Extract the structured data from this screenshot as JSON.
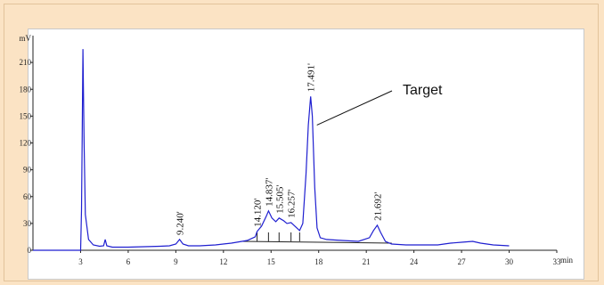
{
  "chart_data": {
    "type": "line",
    "ylabel": "mV",
    "xlabel": "min",
    "xlim": [
      0,
      33
    ],
    "ylim": [
      0,
      240
    ],
    "x_ticks": [
      3,
      6,
      9,
      12,
      15,
      18,
      21,
      24,
      27,
      30,
      33
    ],
    "y_ticks": [
      0,
      30,
      60,
      90,
      120,
      150,
      180,
      210
    ],
    "series": [
      {
        "color": "#1f1fd0",
        "points": [
          [
            0,
            0
          ],
          [
            3.0,
            0
          ],
          [
            3.06,
            45
          ],
          [
            3.1,
            120
          ],
          [
            3.15,
            225
          ],
          [
            3.22,
            120
          ],
          [
            3.3,
            40
          ],
          [
            3.5,
            12
          ],
          [
            3.8,
            6
          ],
          [
            4.2,
            4.5
          ],
          [
            4.45,
            5
          ],
          [
            4.55,
            12
          ],
          [
            4.65,
            5
          ],
          [
            5.0,
            3.5
          ],
          [
            6,
            3.5
          ],
          [
            7,
            4
          ],
          [
            8,
            4.5
          ],
          [
            8.6,
            5
          ],
          [
            9.0,
            7
          ],
          [
            9.24,
            12
          ],
          [
            9.45,
            7
          ],
          [
            9.8,
            5
          ],
          [
            10.5,
            5
          ],
          [
            11.5,
            6
          ],
          [
            12.5,
            8
          ],
          [
            13.5,
            11
          ],
          [
            14.0,
            15
          ],
          [
            14.12,
            21
          ],
          [
            14.4,
            27
          ],
          [
            14.7,
            38
          ],
          [
            14.84,
            44
          ],
          [
            15.05,
            36
          ],
          [
            15.3,
            32
          ],
          [
            15.505,
            36
          ],
          [
            15.8,
            33
          ],
          [
            16.0,
            30
          ],
          [
            16.257,
            31
          ],
          [
            16.5,
            27
          ],
          [
            16.8,
            22
          ],
          [
            17.0,
            30
          ],
          [
            17.2,
            85
          ],
          [
            17.35,
            140
          ],
          [
            17.491,
            172
          ],
          [
            17.6,
            150
          ],
          [
            17.75,
            70
          ],
          [
            17.9,
            25
          ],
          [
            18.1,
            14
          ],
          [
            18.5,
            12
          ],
          [
            19.5,
            11
          ],
          [
            20.5,
            10
          ],
          [
            21.2,
            14
          ],
          [
            21.45,
            22
          ],
          [
            21.692,
            28
          ],
          [
            21.9,
            20
          ],
          [
            22.2,
            10
          ],
          [
            22.6,
            7
          ],
          [
            23.5,
            6
          ],
          [
            24.5,
            6
          ],
          [
            25.5,
            6
          ],
          [
            26.3,
            8
          ],
          [
            27.0,
            9
          ],
          [
            27.7,
            10
          ],
          [
            28.2,
            8
          ],
          [
            29.0,
            6
          ],
          [
            30.0,
            5
          ]
        ]
      }
    ],
    "peak_labels": [
      {
        "text": "9.240'",
        "x": 9.24,
        "y": 12
      },
      {
        "text": "14.120'",
        "x": 14.12,
        "y": 21
      },
      {
        "text": "14.837'",
        "x": 14.837,
        "y": 44
      },
      {
        "text": "15.505'",
        "x": 15.505,
        "y": 36
      },
      {
        "text": "16.257'",
        "x": 16.257,
        "y": 31
      },
      {
        "text": "17.491'",
        "x": 17.491,
        "y": 172
      },
      {
        "text": "21.692'",
        "x": 21.692,
        "y": 28
      }
    ],
    "annotations": [
      {
        "text": "Target",
        "points_to_x": 17.55,
        "points_to_y": 140
      }
    ],
    "grid": false
  }
}
